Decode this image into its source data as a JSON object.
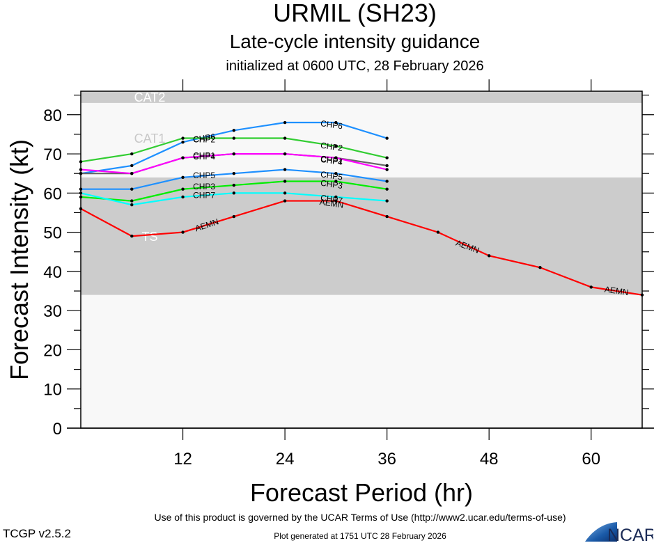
{
  "header": {
    "title": "URMIL (SH23)",
    "subtitle": "Late-cycle intensity guidance",
    "init": "initialized at 0600 UTC, 28 February 2026"
  },
  "footer": {
    "terms": "Use of this product is governed by the UCAR Terms of Use (http://www2.ucar.edu/terms-of-use)",
    "generated": "Plot generated at 1751 UTC   28 February 2026",
    "version": "TCGP v2.5.2",
    "logo_text": "NCAR"
  },
  "chart_data": {
    "type": "line",
    "title": "URMIL (SH23) Late-cycle intensity guidance",
    "xlabel": "Forecast Period (hr)",
    "ylabel": "Forecast Intensity (kt)",
    "xlim": [
      0,
      66
    ],
    "ylim": [
      0,
      86
    ],
    "xticks": [
      12,
      24,
      36,
      48,
      60
    ],
    "yticks": [
      0,
      10,
      20,
      30,
      40,
      50,
      60,
      70,
      80
    ],
    "grid": false,
    "bands": [
      {
        "label": "TS",
        "from": 34,
        "to": 64,
        "color": "#cccccc"
      },
      {
        "label": "CAT1",
        "from": 64,
        "to": 83,
        "color": "#f8f8f8"
      },
      {
        "label": "CAT2",
        "from": 83,
        "to": 96,
        "color": "#cccccc"
      }
    ],
    "series": [
      {
        "name": "CHP6",
        "color": "#1e90ff",
        "x": [
          0,
          6,
          12,
          18,
          24,
          30,
          36
        ],
        "values": [
          65,
          67,
          73,
          76,
          78,
          78,
          74
        ]
      },
      {
        "name": "CHP2",
        "color": "#32cd32",
        "x": [
          0,
          6,
          12,
          18,
          24,
          30,
          36
        ],
        "values": [
          68,
          70,
          74,
          74,
          74,
          72,
          69
        ]
      },
      {
        "name": "CHP1",
        "color": "#666666",
        "x": [
          0,
          6,
          12,
          18,
          24,
          30,
          36
        ],
        "values": [
          65,
          65,
          69,
          70,
          70,
          69,
          67
        ]
      },
      {
        "name": "CHP4",
        "color": "#ff00ff",
        "x": [
          0,
          6,
          12,
          18,
          24,
          30,
          36
        ],
        "values": [
          66,
          65,
          69,
          70,
          70,
          69,
          66
        ]
      },
      {
        "name": "CHP5",
        "color": "#1e90ff",
        "x": [
          0,
          6,
          12,
          18,
          24,
          30,
          36
        ],
        "values": [
          61,
          61,
          64,
          65,
          66,
          65,
          63
        ]
      },
      {
        "name": "CHP3",
        "color": "#00ee00",
        "x": [
          0,
          6,
          12,
          18,
          24,
          30,
          36
        ],
        "values": [
          59,
          58,
          61,
          62,
          63,
          63,
          61
        ]
      },
      {
        "name": "CHP7",
        "color": "#00ffff",
        "x": [
          0,
          6,
          12,
          18,
          24,
          30,
          36
        ],
        "values": [
          60,
          57,
          59,
          60,
          60,
          59,
          58
        ]
      },
      {
        "name": "AEMN",
        "color": "#ff0000",
        "x": [
          0,
          6,
          12,
          18,
          24,
          30,
          36,
          42,
          48,
          54,
          60,
          66
        ],
        "values": [
          56,
          49,
          50,
          54,
          58,
          58,
          54,
          50,
          44,
          41,
          36,
          34
        ]
      }
    ]
  }
}
